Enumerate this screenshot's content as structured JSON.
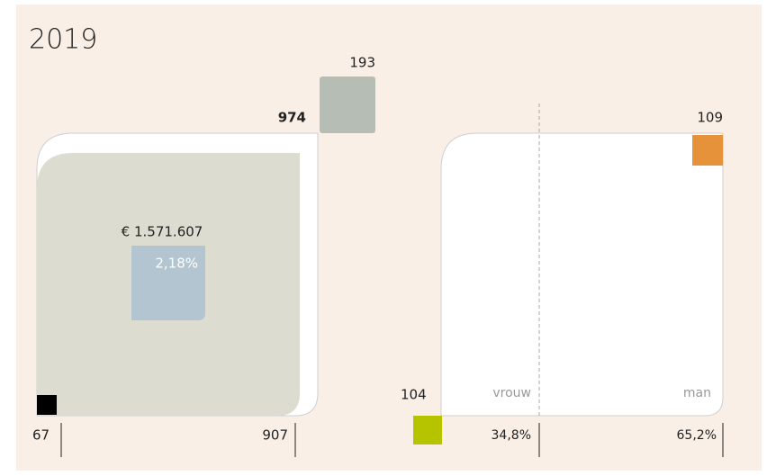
{
  "title": "2019",
  "left": {
    "top_value": "193",
    "total": "974",
    "amount": "€ 1.571.607",
    "percentage": "2,18%",
    "bottom_left": "67",
    "bottom_right": "907"
  },
  "right": {
    "top_value": "109",
    "bottom_value": "104",
    "female_label": "vrouw",
    "male_label": "man",
    "female_share": "34,8%",
    "male_share": "65,2%"
  }
}
